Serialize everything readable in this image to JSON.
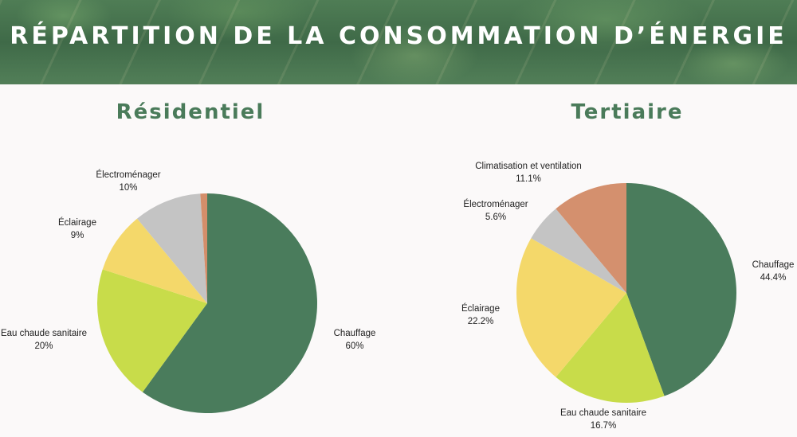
{
  "header": {
    "title": "RÉPARTITION DE LA CONSOMMATION D’ÉNERGIE"
  },
  "chart_data": [
    {
      "type": "pie",
      "title": "Résidentiel",
      "slices": [
        {
          "label": "Chauffage",
          "value": 60,
          "value_text": "60%",
          "color": "#4a7c5c"
        },
        {
          "label": "Eau chaude sanitaire",
          "value": 20,
          "value_text": "20%",
          "color": "#c8dc4a"
        },
        {
          "label": "Éclairage",
          "value": 9,
          "value_text": "9%",
          "color": "#f4d86a"
        },
        {
          "label": "Électroménager",
          "value": 10,
          "value_text": "10%",
          "color": "#c4c4c4"
        },
        {
          "label": "",
          "value": 1,
          "value_text": "",
          "color": "#d48e6a"
        }
      ]
    },
    {
      "type": "pie",
      "title": "Tertiaire",
      "slices": [
        {
          "label": "Chauffage",
          "value": 44.4,
          "value_text": "44.4%",
          "color": "#4a7c5c"
        },
        {
          "label": "Eau chaude sanitaire",
          "value": 16.7,
          "value_text": "16.7%",
          "color": "#c8dc4a"
        },
        {
          "label": "Éclairage",
          "value": 22.2,
          "value_text": "22.2%",
          "color": "#f4d86a"
        },
        {
          "label": "Électroménager",
          "value": 5.6,
          "value_text": "5.6%",
          "color": "#c4c4c4"
        },
        {
          "label": "Climatisation et ventilation",
          "value": 11.1,
          "value_text": "11.1%",
          "color": "#d4906e"
        }
      ]
    }
  ]
}
